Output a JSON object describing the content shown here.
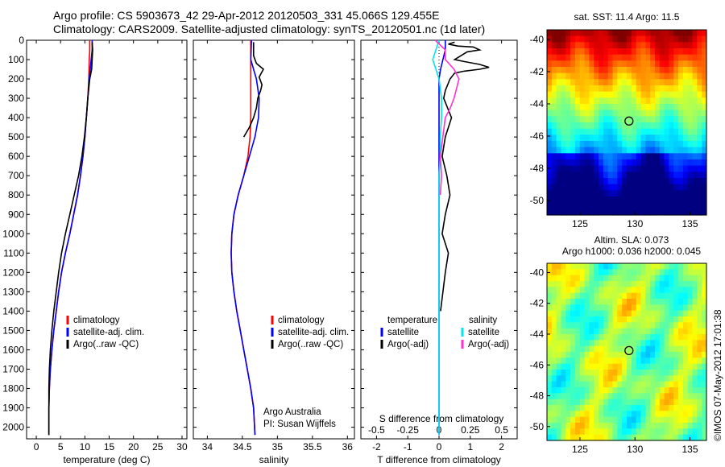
{
  "header": {
    "line1": "Argo profile: CS 5903673_42 29-Apr-2012 20120503_331 45.066S 129.455E",
    "line2": "Climatology: CARS2009. Satellite-adjusted climatology: synTS_20120501.nc (1d later)"
  },
  "footer_stamp": "©IMOS 07-May-2012 17:01:38",
  "colors": {
    "climatology": "#ff0000",
    "satellite": "#0000ff",
    "argo": "#000000",
    "t_satellite": "#0000ff",
    "s_satellite": "#00e5ee",
    "s_argo": "#ff33cc"
  },
  "chart_data": [
    {
      "type": "line",
      "id": "temperature",
      "xlabel": "temperature (deg C)",
      "xlim": [
        -2,
        31
      ],
      "xticks": [
        0,
        5,
        10,
        15,
        20,
        25,
        30
      ],
      "ylim": [
        2060,
        0
      ],
      "yticks": [
        0,
        100,
        200,
        300,
        400,
        500,
        600,
        700,
        800,
        900,
        1000,
        1100,
        1200,
        1300,
        1400,
        1500,
        1600,
        1700,
        1800,
        1900,
        2000
      ],
      "legend": [
        "climatology",
        "satellite-adj. clim.",
        "Argo(..raw -QC)"
      ],
      "series": [
        {
          "name": "climatology",
          "color": "#ff0000",
          "x": [
            11.0,
            11.0,
            10.9,
            10.8,
            10.6,
            10.3,
            10.0,
            9.6,
            9.1,
            8.5,
            7.7,
            6.9,
            6.0,
            5.2,
            4.6,
            4.1,
            3.6,
            3.2,
            2.9,
            2.7,
            2.6,
            2.6
          ],
          "y": [
            0,
            50,
            100,
            200,
            300,
            400,
            500,
            600,
            700,
            800,
            900,
            1000,
            1100,
            1200,
            1300,
            1400,
            1500,
            1600,
            1700,
            1800,
            1900,
            2040
          ]
        },
        {
          "name": "satellite-adj. clim.",
          "color": "#0000ff",
          "x": [
            11.5,
            11.5,
            11.3,
            10.9,
            10.6,
            10.3,
            10.0,
            9.6,
            9.1,
            8.5,
            7.7,
            6.9,
            6.0,
            5.2,
            4.6,
            4.1,
            3.6,
            3.2,
            2.9,
            2.7,
            2.6,
            2.6
          ],
          "y": [
            0,
            50,
            100,
            200,
            300,
            400,
            500,
            600,
            700,
            800,
            900,
            1000,
            1100,
            1200,
            1300,
            1400,
            1500,
            1600,
            1700,
            1800,
            1900,
            2040
          ]
        },
        {
          "name": "Argo(..raw -QC)",
          "color": "#000000",
          "x": [
            11.5,
            11.6,
            11.5,
            11.4,
            11.0,
            10.6,
            10.3,
            9.9,
            9.4,
            8.7,
            7.8,
            6.9,
            6.0,
            5.2,
            4.6,
            4.1,
            3.6,
            3.2,
            2.9,
            2.7,
            2.6,
            2.6
          ],
          "y": [
            10,
            50,
            100,
            150,
            200,
            300,
            400,
            500,
            600,
            700,
            800,
            900,
            1000,
            1100,
            1200,
            1300,
            1400,
            1500,
            1600,
            1700,
            1800,
            2040
          ]
        }
      ]
    },
    {
      "type": "line",
      "id": "salinity",
      "xlabel": "salinity",
      "xlim": [
        33.8,
        36.1
      ],
      "xticks": [
        34,
        34.5,
        35,
        35.5,
        36
      ],
      "ylim": [
        2060,
        0
      ],
      "legend": [
        "climatology",
        "satellite-adj. clim.",
        "Argo(..raw -QC)"
      ],
      "annotation": [
        "Argo Australia",
        "PI: Susan Wijffels"
      ],
      "series": [
        {
          "name": "climatology",
          "color": "#ff0000",
          "x": [
            34.62,
            34.62,
            34.62,
            34.62,
            34.62,
            34.61,
            34.58,
            34.52,
            34.44,
            34.38,
            34.35,
            34.34,
            34.35,
            34.38,
            34.42,
            34.47,
            34.52,
            34.57,
            34.62,
            34.66,
            34.68
          ],
          "y": [
            0,
            100,
            200,
            300,
            400,
            500,
            600,
            700,
            800,
            900,
            1000,
            1100,
            1200,
            1300,
            1400,
            1500,
            1600,
            1700,
            1800,
            1900,
            2040
          ]
        },
        {
          "name": "satellite-adj. clim.",
          "color": "#0000ff",
          "x": [
            34.63,
            34.62,
            34.7,
            34.74,
            34.73,
            34.68,
            34.6,
            34.52,
            34.44,
            34.38,
            34.35,
            34.34,
            34.35,
            34.38,
            34.42,
            34.47,
            34.52,
            34.57,
            34.62,
            34.66,
            34.68
          ],
          "y": [
            0,
            100,
            200,
            300,
            400,
            500,
            600,
            700,
            800,
            900,
            1000,
            1100,
            1200,
            1300,
            1400,
            1500,
            1600,
            1700,
            1800,
            1900,
            2040
          ]
        },
        {
          "name": "Argo(..raw -QC)",
          "color": "#000000",
          "x": [
            34.66,
            34.66,
            34.7,
            34.8,
            34.74,
            34.78,
            34.76,
            34.72,
            34.7,
            34.66,
            34.6,
            34.52
          ],
          "y": [
            10,
            80,
            120,
            150,
            190,
            230,
            260,
            300,
            350,
            400,
            450,
            500
          ]
        }
      ]
    },
    {
      "type": "line",
      "id": "difference",
      "xlabel": "T difference from climatology",
      "xlabel_top": "S difference from climatology",
      "xlim": [
        -2.5,
        2.5
      ],
      "xticks": [
        -2,
        -1,
        0,
        1,
        2
      ],
      "xticks_top": [
        -0.5,
        -0.25,
        0,
        0.25,
        0.5
      ],
      "ylim": [
        2060,
        0
      ],
      "legend_t": [
        "temperature",
        "satellite",
        "Argo(-adj)"
      ],
      "legend_s": [
        "salinity",
        "satellite",
        "Argo(-adj)"
      ],
      "series": [
        {
          "name": "T satellite",
          "color": "#0000ff",
          "x": [
            0.2,
            0.2,
            0.05,
            0.0,
            0.0,
            0.0,
            0.0,
            0.0,
            0.0,
            0.0,
            0.0,
            0.0,
            0.0,
            0.0,
            0.0,
            0.0,
            0.0,
            0.0,
            0.0
          ],
          "y": [
            0,
            50,
            150,
            200,
            300,
            400,
            500,
            600,
            700,
            800,
            900,
            1000,
            1200,
            1400,
            1600,
            1800,
            1900,
            2000,
            2040
          ]
        },
        {
          "name": "T Argo(-adj)",
          "color": "#000000",
          "x": [
            0.5,
            0.3,
            0.6,
            1.1,
            1.3,
            0.9,
            0.7,
            0.5,
            0.8,
            1.3,
            1.6,
            1.3,
            0.8,
            0.5,
            0.35,
            0.2,
            0.15,
            0.4,
            0.2,
            0.1,
            0.25,
            0.35,
            0.2,
            0.1,
            0.3,
            0.2,
            0.05
          ],
          "y": [
            10,
            20,
            30,
            35,
            50,
            60,
            80,
            100,
            110,
            125,
            140,
            150,
            160,
            170,
            200,
            260,
            300,
            400,
            500,
            600,
            700,
            800,
            900,
            1000,
            1100,
            1200,
            1400
          ]
        },
        {
          "name": "S satellite",
          "color": "#00e5ee",
          "x": [
            0.0,
            -0.05,
            0.0,
            0.02,
            0.02,
            0.01,
            0.01,
            0.0,
            0.0,
            0.0,
            0.0,
            0.0,
            0.0,
            0.0,
            0.0,
            0.0,
            0.0,
            0.0
          ],
          "y": [
            0,
            100,
            200,
            300,
            400,
            500,
            600,
            700,
            800,
            1000,
            1200,
            1300,
            1400,
            1600,
            1800,
            1900,
            2000,
            2040
          ]
        },
        {
          "name": "S Argo(-adj)",
          "color": "#ff33cc",
          "x": [
            -0.03,
            0.05,
            0.05,
            0.12,
            0.16,
            0.14,
            0.12,
            0.09,
            0.05,
            0.03,
            0.01,
            0.02,
            0.01
          ],
          "y": [
            0,
            50,
            100,
            150,
            200,
            250,
            300,
            350,
            400,
            500,
            600,
            700,
            800
          ]
        }
      ]
    },
    {
      "type": "heatmap",
      "id": "sst_map",
      "title": "sat. SST: 11.4 Argo: 11.5",
      "xticks": [
        125,
        130,
        135
      ],
      "yticks": [
        -40,
        -42,
        -44,
        -46,
        -48,
        -50
      ],
      "xlim": [
        122,
        136.5
      ],
      "ylim": [
        -50.9,
        -39.4
      ],
      "marker": {
        "lon": 129.455,
        "lat": -45.066
      }
    },
    {
      "type": "heatmap",
      "id": "sla_map",
      "title": "Altim. SLA: 0.073",
      "subtitle": "Argo h1000: 0.036 h2000: 0.045",
      "xticks": [
        125,
        130,
        135
      ],
      "yticks": [
        -40,
        -42,
        -44,
        -46,
        -48,
        -50
      ],
      "xlim": [
        122,
        136.5
      ],
      "ylim": [
        -50.9,
        -39.4
      ],
      "marker": {
        "lon": 129.455,
        "lat": -45.066
      }
    }
  ]
}
